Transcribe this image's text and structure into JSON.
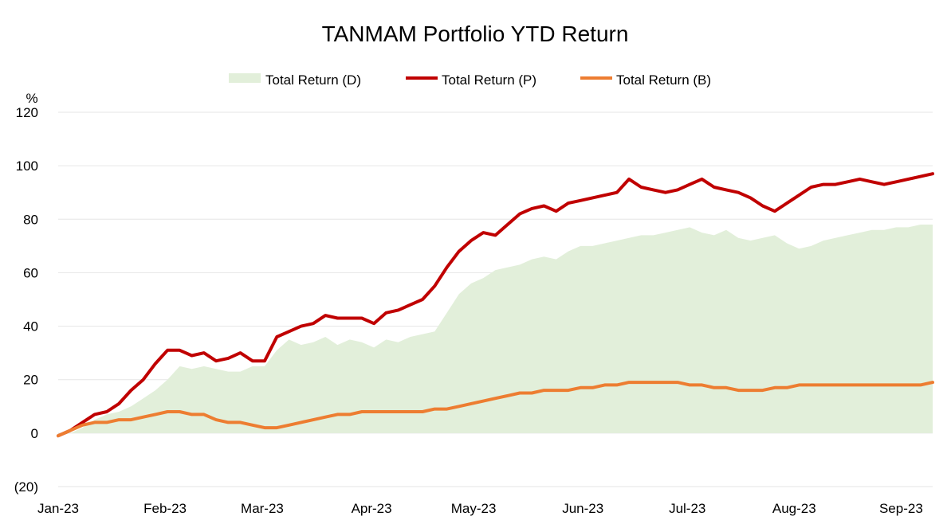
{
  "chart_data": {
    "type": "line",
    "title": "TANMAM Portfolio YTD Return",
    "ylabel": "%",
    "xlabel": "",
    "ylim": [
      -20,
      120
    ],
    "yticks": [
      {
        "value": 120,
        "label": "120"
      },
      {
        "value": 100,
        "label": "100"
      },
      {
        "value": 80,
        "label": "80"
      },
      {
        "value": 60,
        "label": "60"
      },
      {
        "value": 40,
        "label": "40"
      },
      {
        "value": 20,
        "label": "20"
      },
      {
        "value": 0,
        "label": "0"
      },
      {
        "value": -20,
        "label": "(20)"
      }
    ],
    "xticks": [
      {
        "week": 0,
        "label": "Jan-23"
      },
      {
        "week": 4.4,
        "label": "Feb-23"
      },
      {
        "week": 8.4,
        "label": "Mar-23"
      },
      {
        "week": 12.9,
        "label": "Apr-23"
      },
      {
        "week": 17.1,
        "label": "May-23"
      },
      {
        "week": 21.6,
        "label": "Jun-23"
      },
      {
        "week": 25.9,
        "label": "Jul-23"
      },
      {
        "week": 30.3,
        "label": "Aug-23"
      },
      {
        "week": 34.7,
        "label": "Sep-23"
      }
    ],
    "x_unit": "weeks since Jan-23",
    "x": [
      0,
      0.5,
      1,
      1.5,
      2,
      2.5,
      3,
      3.5,
      4,
      4.5,
      5,
      5.5,
      6,
      6.5,
      7,
      7.5,
      8,
      8.5,
      9,
      9.5,
      10,
      10.5,
      11,
      11.5,
      12,
      12.5,
      13,
      13.5,
      14,
      14.5,
      15,
      15.5,
      16,
      16.5,
      17,
      17.5,
      18,
      18.5,
      19,
      19.5,
      20,
      20.5,
      21,
      21.5,
      22,
      22.5,
      23,
      23.5,
      24,
      24.5,
      25,
      25.5,
      26,
      26.5,
      27,
      27.5,
      28,
      28.5,
      29,
      29.5,
      30,
      30.5,
      31,
      31.5,
      32,
      32.5,
      33,
      33.5,
      34,
      34.5,
      35,
      35.5,
      36
    ],
    "series": [
      {
        "name": "Total Return (D)",
        "style": "area",
        "color": "#e2efda",
        "values": [
          -1,
          0,
          2,
          5,
          7,
          8,
          10,
          13,
          16,
          20,
          25,
          24,
          25,
          24,
          23,
          23,
          25,
          25,
          31,
          35,
          33,
          34,
          36,
          33,
          35,
          34,
          32,
          35,
          34,
          36,
          37,
          38,
          45,
          52,
          56,
          58,
          61,
          62,
          63,
          65,
          66,
          65,
          68,
          70,
          70,
          71,
          72,
          73,
          74,
          74,
          75,
          76,
          77,
          75,
          74,
          76,
          73,
          72,
          73,
          74,
          71,
          69,
          70,
          72,
          73,
          74,
          75,
          76,
          76,
          77,
          77,
          78,
          78
        ]
      },
      {
        "name": "Total Return (P)",
        "style": "line",
        "color": "#c00000",
        "values": [
          -1,
          1,
          4,
          7,
          8,
          11,
          16,
          20,
          26,
          31,
          31,
          29,
          30,
          27,
          28,
          30,
          27,
          27,
          36,
          38,
          40,
          41,
          44,
          43,
          43,
          43,
          41,
          45,
          46,
          48,
          50,
          55,
          62,
          68,
          72,
          75,
          74,
          78,
          82,
          84,
          85,
          83,
          86,
          87,
          88,
          89,
          90,
          95,
          92,
          91,
          90,
          91,
          93,
          95,
          92,
          91,
          90,
          88,
          85,
          83,
          86,
          89,
          92,
          93,
          93,
          94,
          95,
          94,
          93,
          94,
          95,
          96,
          97
        ]
      },
      {
        "name": "Total Return (B)",
        "style": "line",
        "color": "#ed7d31",
        "values": [
          -1,
          1,
          3,
          4,
          4,
          5,
          5,
          6,
          7,
          8,
          8,
          7,
          7,
          5,
          4,
          4,
          3,
          2,
          2,
          3,
          4,
          5,
          6,
          7,
          7,
          8,
          8,
          8,
          8,
          8,
          8,
          9,
          9,
          10,
          11,
          12,
          13,
          14,
          15,
          15,
          16,
          16,
          16,
          17,
          17,
          18,
          18,
          19,
          19,
          19,
          19,
          19,
          18,
          18,
          17,
          17,
          16,
          16,
          16,
          17,
          17,
          18,
          18,
          18,
          18,
          18,
          18,
          18,
          18,
          18,
          18,
          18,
          19
        ]
      }
    ],
    "legend": {
      "position": "top"
    }
  }
}
